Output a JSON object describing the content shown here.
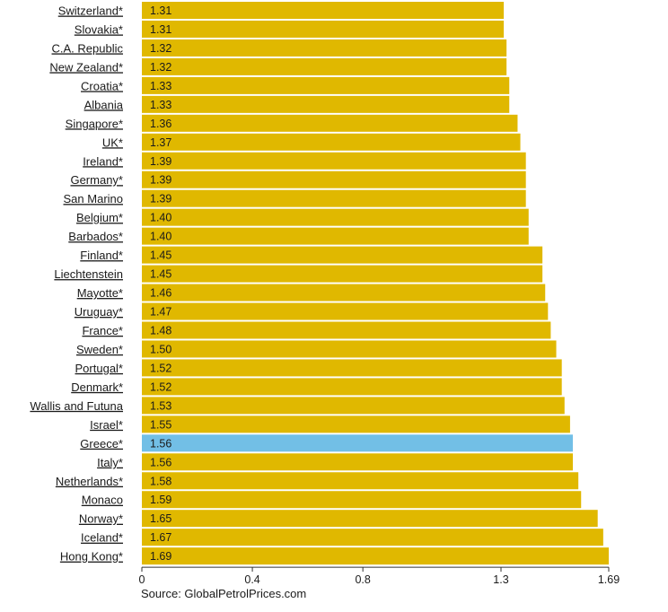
{
  "chart_data": {
    "type": "bar",
    "orientation": "horizontal",
    "categories": [
      "Switzerland*",
      "Slovakia*",
      "C.A. Republic",
      "New Zealand*",
      "Croatia*",
      "Albania",
      "Singapore*",
      "UK*",
      "Ireland*",
      "Germany*",
      "San Marino",
      "Belgium*",
      "Barbados*",
      "Finland*",
      "Liechtenstein",
      "Mayotte*",
      "Uruguay*",
      "France*",
      "Sweden*",
      "Portugal*",
      "Denmark*",
      "Wallis and Futuna",
      "Israel*",
      "Greece*",
      "Italy*",
      "Netherlands*",
      "Monaco",
      "Norway*",
      "Iceland*",
      "Hong Kong*"
    ],
    "values": [
      1.31,
      1.31,
      1.32,
      1.32,
      1.33,
      1.33,
      1.36,
      1.37,
      1.39,
      1.39,
      1.39,
      1.4,
      1.4,
      1.45,
      1.45,
      1.46,
      1.47,
      1.48,
      1.5,
      1.52,
      1.52,
      1.53,
      1.55,
      1.56,
      1.56,
      1.58,
      1.59,
      1.65,
      1.67,
      1.69
    ],
    "value_labels": [
      "1.31",
      "1.31",
      "1.32",
      "1.32",
      "1.33",
      "1.33",
      "1.36",
      "1.37",
      "1.39",
      "1.39",
      "1.39",
      "1.40",
      "1.40",
      "1.45",
      "1.45",
      "1.46",
      "1.47",
      "1.48",
      "1.50",
      "1.52",
      "1.52",
      "1.53",
      "1.55",
      "1.56",
      "1.56",
      "1.58",
      "1.59",
      "1.65",
      "1.67",
      "1.69"
    ],
    "highlight": "Greece*",
    "xticks": [
      0,
      0.4,
      0.8,
      1.3,
      1.69
    ],
    "xtick_labels": [
      "0",
      "0.4",
      "0.8",
      "1.3",
      "1.69"
    ],
    "xlim": [
      0,
      1.69
    ],
    "title": "",
    "xlabel": "",
    "ylabel": "",
    "grid": false,
    "colors": {
      "bar": "#e0b800",
      "highlight": "#72bfe6",
      "axis": "#333333"
    }
  },
  "source": "Source: GlobalPetrolPrices.com"
}
